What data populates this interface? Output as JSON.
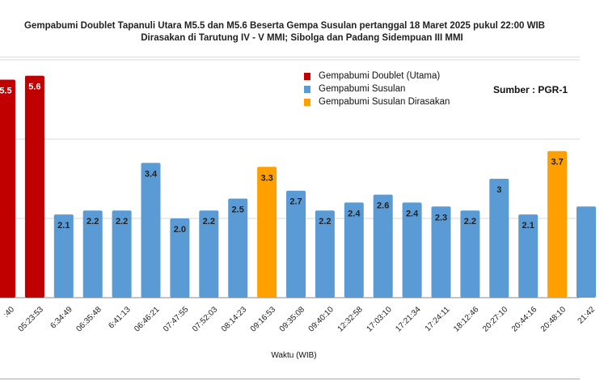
{
  "colors": {
    "main": "#C00000",
    "aftershock": "#5B9BD5",
    "felt": "#FFA000"
  },
  "chart_data": {
    "type": "bar",
    "title": "Gempabumi Doublet Tapanuli Utara M5.5 dan M5.6 Beserta Gempa Susulan pertanggal 18 Maret 2025 pukul 22:00 WIB",
    "subtitle": "Dirasakan di Tarutung IV - V MMI; Sibolga dan Padang Sidempuan III MMI",
    "xlabel": "Waktu (WIB)",
    "ylabel": "",
    "ylim": [
      0,
      6
    ],
    "grid": true,
    "legend_position": "top-right",
    "source": "Sumber : PGR-1",
    "legend": [
      {
        "name": "Gempabumi Doublet (Utama)",
        "type": "main"
      },
      {
        "name": "Gempabumi Susulan",
        "type": "aftershock"
      },
      {
        "name": "Gempabumi Susulan Dirasakan",
        "type": "felt"
      }
    ],
    "categories": [
      ":40",
      "05:23:53",
      "6:34:49",
      "06:35:48",
      "6:41:13",
      "06:46:21",
      "07:47:55",
      "07:52:03",
      "08:14:23",
      "09:16:53",
      "09:35:08",
      "09:40:10",
      "12:32:58",
      "17:03:10",
      "17:21:34",
      "17:24:11",
      "18:12:46",
      "20:27:10",
      "20:44:16",
      "20:48:10",
      "21:42"
    ],
    "values": [
      5.5,
      5.6,
      2.1,
      2.2,
      2.2,
      3.4,
      2.0,
      2.2,
      2.5,
      3.3,
      2.7,
      2.2,
      2.4,
      2.6,
      2.4,
      2.3,
      2.2,
      3,
      2.1,
      3.7,
      2.3
    ],
    "labels": [
      "5.5",
      "5.6",
      "2.1",
      "2.2",
      "2.2",
      "3.4",
      "2.0",
      "2.2",
      "2.5",
      "3.3",
      "2.7",
      "2.2",
      "2.4",
      "2.6",
      "2.4",
      "2.3",
      "2.2",
      "3",
      "2.1",
      "3.7",
      ""
    ],
    "types": [
      "main",
      "main",
      "aftershock",
      "aftershock",
      "aftershock",
      "aftershock",
      "aftershock",
      "aftershock",
      "aftershock",
      "felt",
      "aftershock",
      "aftershock",
      "aftershock",
      "aftershock",
      "aftershock",
      "aftershock",
      "aftershock",
      "aftershock",
      "aftershock",
      "felt",
      "aftershock"
    ]
  }
}
